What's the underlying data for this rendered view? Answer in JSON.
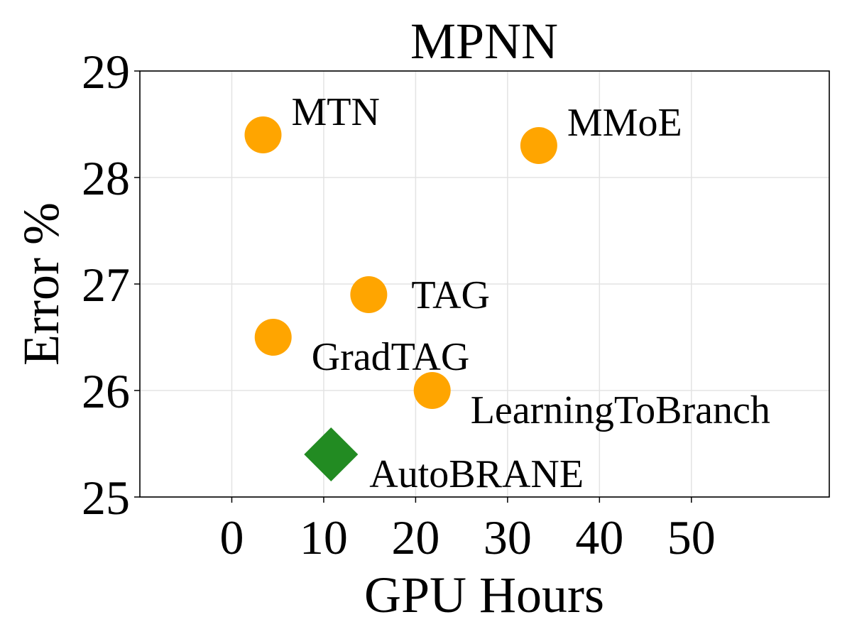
{
  "chart_data": {
    "type": "scatter",
    "title": "MPNN",
    "xlabel": "GPU Hours",
    "ylabel": "Error %",
    "xlim": [
      -10,
      65
    ],
    "ylim": [
      25,
      29
    ],
    "xticks": [
      0,
      10,
      20,
      30,
      40,
      50
    ],
    "yticks": [
      25,
      26,
      27,
      28,
      29
    ],
    "grid": true,
    "colors": {
      "baseline": "#FFA500",
      "ours": "#228B22"
    },
    "points": [
      {
        "label": "MTN",
        "x": 3.4,
        "y": 28.4,
        "marker": "circle",
        "color": "#FFA500"
      },
      {
        "label": "MMoE",
        "x": 33.4,
        "y": 28.3,
        "marker": "circle",
        "color": "#FFA500"
      },
      {
        "label": "TAG",
        "x": 14.9,
        "y": 26.9,
        "marker": "circle",
        "color": "#FFA500"
      },
      {
        "label": "GradTAG",
        "x": 4.5,
        "y": 26.5,
        "marker": "circle",
        "color": "#FFA500"
      },
      {
        "label": "LearningToBranch",
        "x": 21.8,
        "y": 26.0,
        "marker": "circle",
        "color": "#FFA500"
      },
      {
        "label": "AutoBRANE",
        "x": 10.8,
        "y": 25.4,
        "marker": "diamond",
        "color": "#228B22"
      }
    ]
  }
}
